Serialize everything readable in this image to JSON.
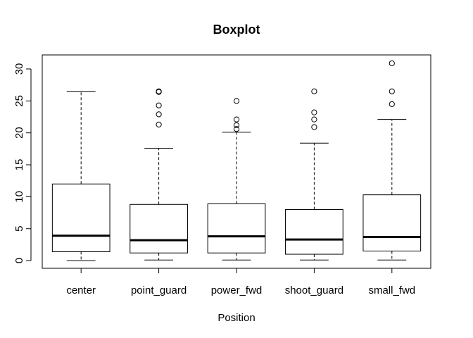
{
  "chart_data": {
    "type": "boxplot",
    "title": "Boxplot",
    "xlabel": "Position",
    "ylabel": "",
    "ylim": [
      -1.2,
      32.2
    ],
    "yticks": [
      0,
      5,
      10,
      15,
      20,
      25,
      30
    ],
    "categories": [
      "center",
      "point_guard",
      "power_fwd",
      "shoot_guard",
      "small_fwd"
    ],
    "boxes": [
      {
        "whisker_low": 0,
        "q1": 1.4,
        "median": 3.9,
        "q3": 12.0,
        "whisker_high": 26.5,
        "outliers": []
      },
      {
        "whisker_low": 0.1,
        "q1": 1.2,
        "median": 3.2,
        "q3": 8.8,
        "whisker_high": 17.6,
        "outliers": [
          21.3,
          22.9,
          24.3,
          26.4,
          26.5
        ]
      },
      {
        "whisker_low": 0.1,
        "q1": 1.2,
        "median": 3.8,
        "q3": 8.9,
        "whisker_high": 20.1,
        "outliers": [
          20.6,
          21.2,
          22.1,
          25.0
        ]
      },
      {
        "whisker_low": 0.1,
        "q1": 1.0,
        "median": 3.3,
        "q3": 8.0,
        "whisker_high": 18.4,
        "outliers": [
          20.9,
          22.1,
          23.2,
          26.5
        ]
      },
      {
        "whisker_low": 0.1,
        "q1": 1.5,
        "median": 3.7,
        "q3": 10.3,
        "whisker_high": 22.1,
        "outliers": [
          24.5,
          26.5,
          30.9
        ]
      }
    ],
    "grid": false,
    "legend": "none"
  }
}
